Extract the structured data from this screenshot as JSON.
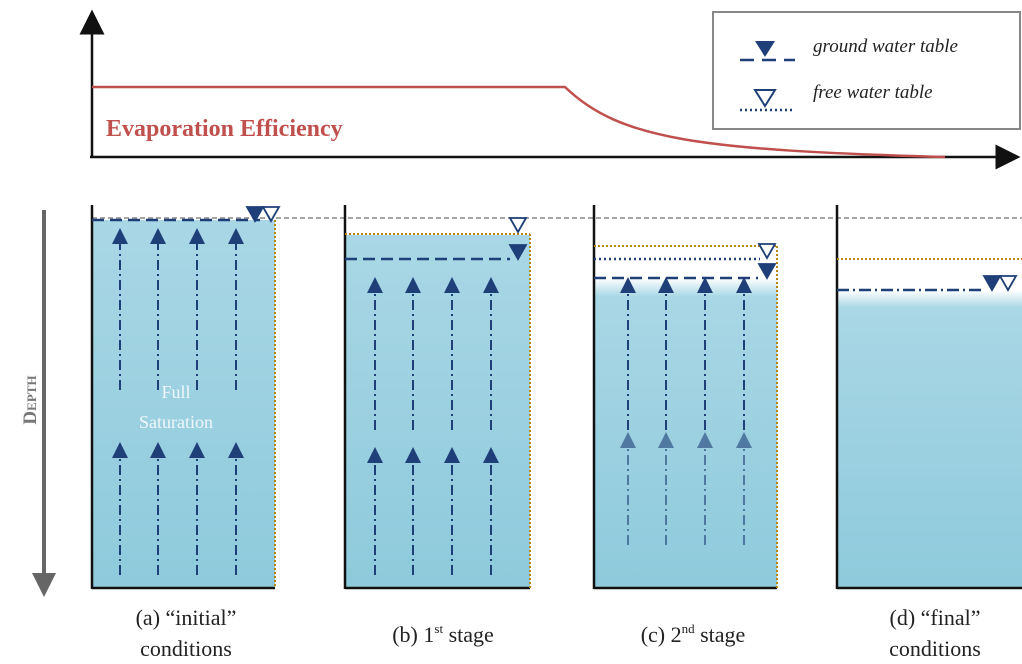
{
  "legend": {
    "items": [
      {
        "label": "ground water table"
      },
      {
        "label": "free water table"
      }
    ]
  },
  "efficiency_label": "Evaporation Efficiency",
  "depth_label": "Depth",
  "annotation": {
    "line1": "Full",
    "line2": "Saturation"
  },
  "panels": [
    {
      "caption_line1": "(a) “initial”",
      "caption_line2": "conditions"
    },
    {
      "caption_start": "(b) 1",
      "caption_sup": "st",
      "caption_end": " stage"
    },
    {
      "caption_start": "(c) 2",
      "caption_sup": "nd",
      "caption_end": " stage"
    },
    {
      "caption_line1": "(d) “final”",
      "caption_line2": "conditions"
    }
  ]
}
